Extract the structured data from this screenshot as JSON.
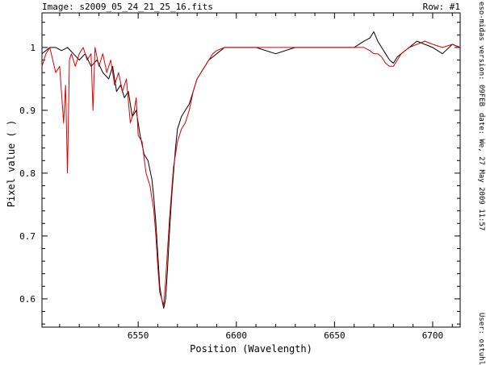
{
  "header": {
    "image_label": "Image: s2009_05_24_21_25_16.fits",
    "row_label": "Row: #1"
  },
  "side_text": {
    "version": "eso-midas version: 09FEB",
    "date": "date: We, 27 May 2009 11:57",
    "user": "User: ostuhl"
  },
  "chart_data": {
    "type": "line",
    "xlabel": "Position (Wavelength)",
    "ylabel": "Pixel value ( )",
    "xlim": [
      6501,
      6714
    ],
    "ylim": [
      0.555,
      1.055
    ],
    "x_ticks": [
      6550,
      6600,
      6650,
      6700
    ],
    "y_ticks": [
      0.6,
      0.7,
      0.8,
      0.9,
      1
    ],
    "y_tick_labels": [
      "0.6",
      "0.7",
      "0.8",
      "0.9",
      "1"
    ],
    "grid": false,
    "colors": {
      "series_black": "#000000",
      "series_red": "#e00000"
    },
    "series": [
      {
        "color": "#000000",
        "x": [
          6501,
          6505,
          6508,
          6511,
          6514,
          6517,
          6520,
          6523,
          6526,
          6529,
          6532,
          6535,
          6537,
          6539,
          6541,
          6543,
          6545,
          6547,
          6549,
          6551,
          6553,
          6555,
          6557,
          6558,
          6559,
          6560,
          6561,
          6562,
          6563,
          6564,
          6565,
          6566,
          6567,
          6568,
          6569,
          6570,
          6572,
          6574,
          6576,
          6578,
          6580,
          6582,
          6584,
          6586,
          6588,
          6590,
          6594,
          6600,
          6610,
          6620,
          6630,
          6640,
          6650,
          6660,
          6665,
          6668,
          6670,
          6672,
          6674,
          6676,
          6678,
          6680,
          6682,
          6684,
          6688,
          6692,
          6696,
          6700,
          6705,
          6710,
          6714
        ],
        "y": [
          0.99,
          1.0,
          1.0,
          0.995,
          1.0,
          0.99,
          0.98,
          0.99,
          0.97,
          0.98,
          0.96,
          0.95,
          0.97,
          0.93,
          0.94,
          0.92,
          0.93,
          0.89,
          0.9,
          0.86,
          0.83,
          0.82,
          0.79,
          0.76,
          0.72,
          0.67,
          0.62,
          0.6,
          0.585,
          0.6,
          0.65,
          0.71,
          0.76,
          0.8,
          0.84,
          0.87,
          0.89,
          0.9,
          0.91,
          0.93,
          0.95,
          0.96,
          0.97,
          0.98,
          0.985,
          0.99,
          1.0,
          1.0,
          1.0,
          0.99,
          1.0,
          1.0,
          1.0,
          1.0,
          1.01,
          1.015,
          1.025,
          1.01,
          1.0,
          0.99,
          0.98,
          0.975,
          0.985,
          0.99,
          1.0,
          1.01,
          1.005,
          1.0,
          0.99,
          1.005,
          1.0
        ]
      },
      {
        "color": "#e00000",
        "x": [
          6501,
          6503,
          6505,
          6508,
          6510,
          6512,
          6513,
          6514,
          6515,
          6516,
          6518,
          6520,
          6522,
          6524,
          6526,
          6527,
          6528,
          6530,
          6532,
          6534,
          6536,
          6538,
          6540,
          6542,
          6544,
          6546,
          6548,
          6549,
          6550,
          6552,
          6554,
          6556,
          6558,
          6559,
          6560,
          6561,
          6562,
          6563,
          6564,
          6565,
          6566,
          6567,
          6568,
          6569,
          6570,
          6572,
          6574,
          6576,
          6578,
          6580,
          6582,
          6584,
          6586,
          6588,
          6590,
          6594,
          6600,
          6610,
          6620,
          6630,
          6640,
          6650,
          6660,
          6665,
          6668,
          6670,
          6672,
          6674,
          6676,
          6678,
          6680,
          6682,
          6684,
          6688,
          6692,
          6696,
          6700,
          6705,
          6710,
          6714
        ],
        "y": [
          0.97,
          0.99,
          1.0,
          0.96,
          0.97,
          0.88,
          0.94,
          0.8,
          0.98,
          0.99,
          0.97,
          0.99,
          1.0,
          0.98,
          0.99,
          0.9,
          1.0,
          0.97,
          0.99,
          0.96,
          0.98,
          0.94,
          0.96,
          0.93,
          0.95,
          0.88,
          0.9,
          0.92,
          0.86,
          0.85,
          0.8,
          0.78,
          0.74,
          0.7,
          0.65,
          0.61,
          0.6,
          0.59,
          0.63,
          0.68,
          0.73,
          0.77,
          0.81,
          0.83,
          0.85,
          0.87,
          0.88,
          0.9,
          0.93,
          0.95,
          0.96,
          0.97,
          0.98,
          0.99,
          0.995,
          1.0,
          1.0,
          1.0,
          1.0,
          1.0,
          1.0,
          1.0,
          1.0,
          1.0,
          0.995,
          0.99,
          0.99,
          0.985,
          0.975,
          0.97,
          0.97,
          0.98,
          0.99,
          1.0,
          1.005,
          1.01,
          1.005,
          1.0,
          1.005,
          1.0
        ]
      }
    ]
  }
}
